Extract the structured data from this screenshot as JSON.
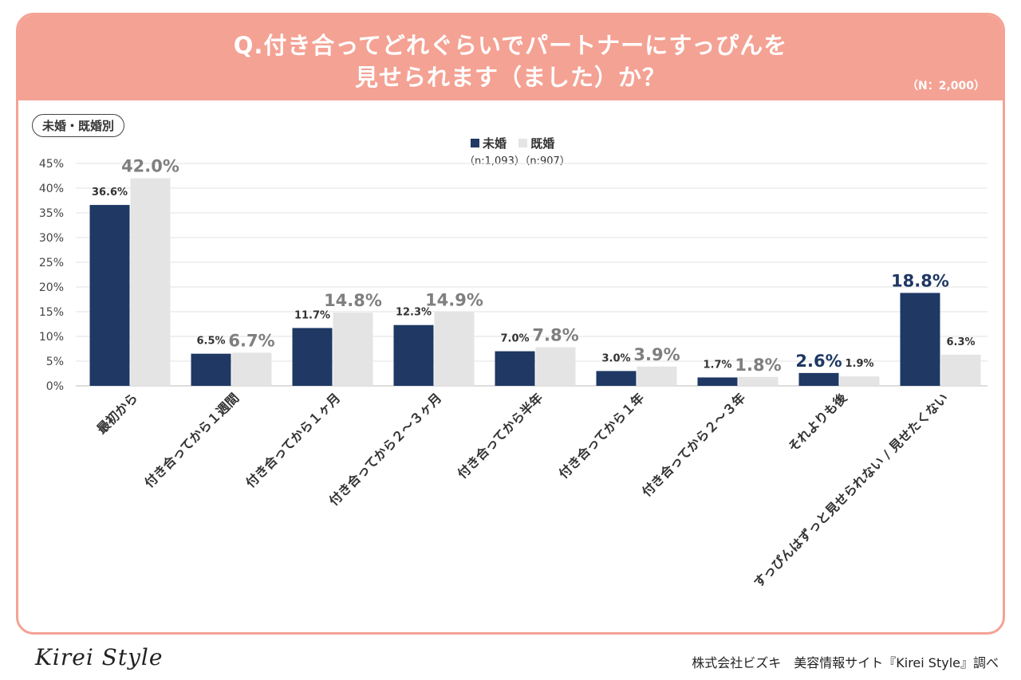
{
  "header": {
    "title_line1": "Q.付き合ってどれぐらいでパートナーにすっぴんを",
    "title_line2": "見せられます（ました）か？",
    "n_total": "（N：2,000）"
  },
  "subset_label": "未婚・既婚別",
  "legend": {
    "items": [
      {
        "label": "未婚",
        "color": "#1f3864"
      },
      {
        "label": "既婚",
        "color": "#e4e4e4"
      }
    ],
    "sample_sizes": "（n:1,093）（n:907）"
  },
  "chart_data": {
    "type": "bar",
    "categories": [
      "最初から",
      "付き合ってから１週間",
      "付き合ってから１ヶ月",
      "付き合ってから２～３ヶ月",
      "付き合ってから半年",
      "付き合ってから１年",
      "付き合ってから２～３年",
      "それよりも後",
      "すっぴんはずっと見せられない / 見せたくない"
    ],
    "series": [
      {
        "name": "未婚",
        "color": "#1f3864",
        "values": [
          36.6,
          6.5,
          11.7,
          12.3,
          7.0,
          3.0,
          1.7,
          2.6,
          18.8
        ],
        "labels": [
          "36.6%",
          "6.5%",
          "11.7%",
          "12.3%",
          "7.0%",
          "3.0%",
          "1.7%",
          "2.6%",
          "18.8%"
        ],
        "highlight": [
          false,
          false,
          false,
          false,
          false,
          false,
          false,
          true,
          true
        ]
      },
      {
        "name": "既婚",
        "color": "#e4e4e4",
        "values": [
          42.0,
          6.7,
          14.8,
          14.9,
          7.8,
          3.9,
          1.8,
          1.9,
          6.3
        ],
        "labels": [
          "42.0%",
          "6.7%",
          "14.8%",
          "14.9%",
          "7.8%",
          "3.9%",
          "1.8%",
          "1.9%",
          "6.3%"
        ],
        "highlight": [
          true,
          true,
          true,
          true,
          true,
          true,
          true,
          false,
          false
        ]
      }
    ],
    "y_ticks": [
      "0%",
      "5%",
      "10%",
      "15%",
      "20%",
      "25%",
      "30%",
      "35%",
      "40%",
      "45%"
    ],
    "ylim": [
      0,
      45
    ],
    "grid": true,
    "legend_position": "top-center"
  },
  "footer": {
    "logo": "Kirei Style",
    "source": "株式会社ビズキ　美容情報サイト『Kirei Style』調べ"
  }
}
